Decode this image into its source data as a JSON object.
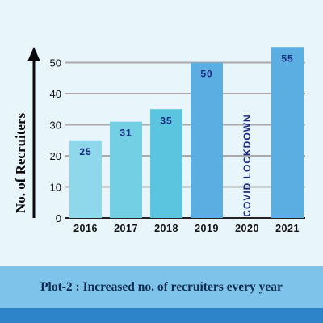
{
  "chart_data": {
    "type": "bar",
    "categories": [
      "2016",
      "2017",
      "2018",
      "2019",
      "2020",
      "2021"
    ],
    "values": [
      25,
      31,
      35,
      50,
      null,
      55
    ],
    "value_labels": [
      "25",
      "31",
      "35",
      "50",
      "",
      "55"
    ],
    "bar_colors": [
      "#8fd7ea",
      "#73cfe3",
      "#5bc5df",
      "#5aaee2",
      null,
      "#5aaee2"
    ],
    "annotation": {
      "category": "2020",
      "text": "COVID LOCKDOWN"
    },
    "ylabel": "No. of Recruiters",
    "xlabel": "",
    "ylim": [
      0,
      55
    ],
    "yticks": [
      0,
      10,
      20,
      30,
      40,
      50
    ],
    "grid": true
  },
  "caption": "Plot-2 : Increased no. of recruiters every year",
  "colors": {
    "background": "#e8f6fc",
    "grid": "#a9a9a9",
    "text": "#0f2d52",
    "value_label": "#1b2b80",
    "caption_band": "#7ec4ea",
    "bottom_stripe": "#2e84c9"
  }
}
